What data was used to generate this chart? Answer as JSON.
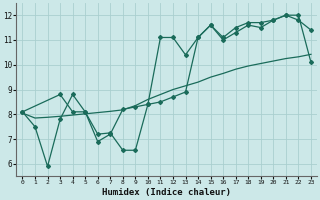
{
  "xlabel": "Humidex (Indice chaleur)",
  "bg_color": "#cce8e8",
  "grid_color": "#aacfcf",
  "line_color": "#1a6b5a",
  "xlim": [
    -0.5,
    23.5
  ],
  "ylim": [
    5.5,
    12.5
  ],
  "xticks": [
    0,
    1,
    2,
    3,
    4,
    5,
    6,
    7,
    8,
    9,
    10,
    11,
    12,
    13,
    14,
    15,
    16,
    17,
    18,
    19,
    20,
    21,
    22,
    23
  ],
  "yticks": [
    6,
    7,
    8,
    9,
    10,
    11,
    12
  ],
  "line1_x": [
    0,
    1,
    2,
    3,
    4,
    5,
    6,
    7,
    8,
    9,
    10,
    11,
    12,
    13,
    14,
    15,
    16,
    17,
    18,
    19,
    20,
    21,
    22,
    23
  ],
  "line1_y": [
    8.1,
    7.5,
    5.9,
    7.8,
    8.8,
    8.1,
    6.9,
    7.2,
    8.2,
    8.3,
    8.4,
    11.1,
    11.1,
    10.4,
    11.1,
    11.6,
    11.1,
    11.5,
    11.7,
    11.7,
    11.8,
    12.0,
    11.8,
    11.4
  ],
  "line2_x": [
    0,
    1,
    2,
    3,
    4,
    5,
    6,
    7,
    8,
    9,
    10,
    11,
    12,
    13,
    14,
    15,
    16,
    17,
    18,
    19,
    20,
    21,
    22,
    23
  ],
  "line2_y": [
    8.05,
    7.85,
    7.88,
    7.92,
    7.97,
    8.02,
    8.07,
    8.12,
    8.18,
    8.35,
    8.6,
    8.8,
    9.0,
    9.15,
    9.3,
    9.5,
    9.65,
    9.82,
    9.95,
    10.05,
    10.15,
    10.25,
    10.32,
    10.42
  ],
  "line3_x": [
    0,
    3,
    4,
    5,
    6,
    7,
    8,
    9,
    10,
    11,
    12,
    13,
    14,
    15,
    16,
    17,
    18,
    19,
    20,
    21,
    22,
    23
  ],
  "line3_y": [
    8.1,
    8.8,
    8.1,
    8.1,
    7.2,
    7.25,
    6.55,
    6.55,
    8.4,
    8.5,
    8.7,
    8.9,
    11.1,
    11.6,
    11.0,
    11.3,
    11.6,
    11.5,
    11.8,
    12.0,
    12.0,
    10.1
  ]
}
